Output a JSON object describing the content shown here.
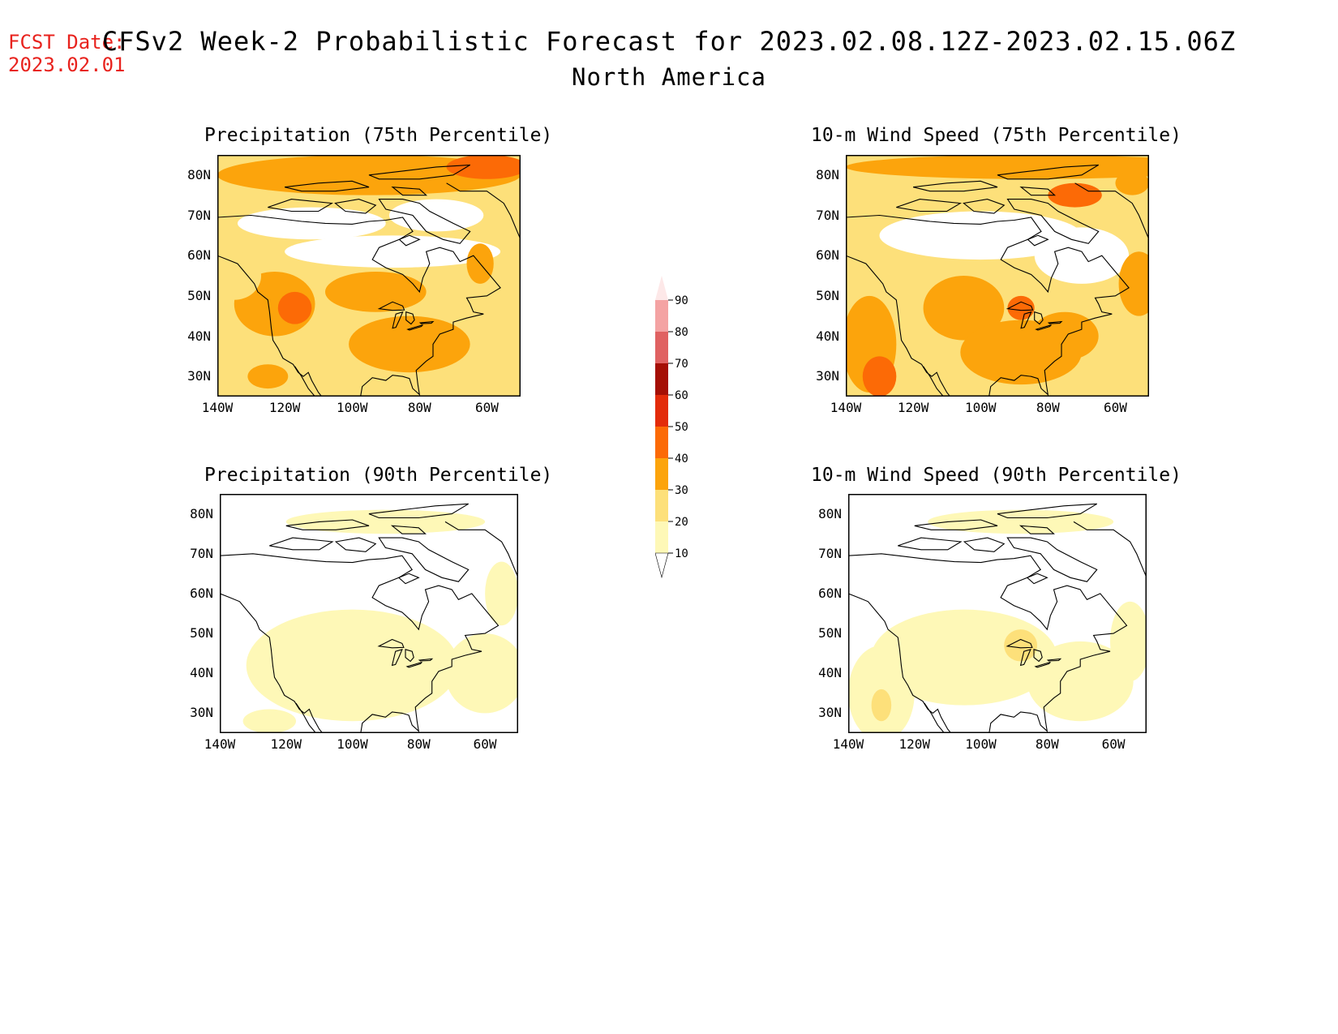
{
  "header": {
    "fcst_label": "FCST Date:",
    "fcst_date": "2023.02.01",
    "title": "CFSv2 Week-2 Probabilistic Forecast for 2023.02.08.12Z-2023.02.15.06Z",
    "subtitle": "North America"
  },
  "map_extent": {
    "lon_range": [
      -140,
      -50
    ],
    "lat_range": [
      25,
      85
    ]
  },
  "lat_ticks": [
    "80N",
    "70N",
    "60N",
    "50N",
    "40N",
    "30N"
  ],
  "lon_ticks": [
    "140W",
    "120W",
    "100W",
    "80W",
    "60W"
  ],
  "panels": [
    {
      "id": "precip75",
      "title": "Precipitation (75th Percentile)",
      "dominant_category": "20-30"
    },
    {
      "id": "wind75",
      "title": "10-m Wind Speed (75th Percentile)",
      "dominant_category": "20-30"
    },
    {
      "id": "precip90",
      "title": "Precipitation (90th Percentile)",
      "dominant_category": "10-20"
    },
    {
      "id": "wind90",
      "title": "10-m Wind Speed (90th Percentile)",
      "dominant_category": "10-20"
    }
  ],
  "colorbar": {
    "labels": [
      "90",
      "80",
      "70",
      "60",
      "50",
      "40",
      "30",
      "20",
      "10"
    ],
    "colors": [
      "#fde8e8",
      "#f4a3a3",
      "#e06262",
      "#a50f05",
      "#e32b0a",
      "#fc6a06",
      "#fca40c",
      "#fde07a",
      "#fef8b7"
    ]
  }
}
